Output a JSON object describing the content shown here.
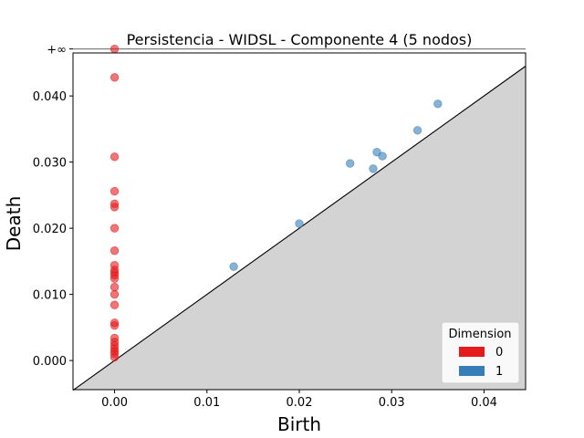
{
  "chart_data": {
    "type": "scatter",
    "title": "Persistencia - WIDSL - Componente 4 (5 nodos)",
    "xlabel": "Birth",
    "ylabel": "Death",
    "xlim": [
      -0.0045,
      0.0445
    ],
    "ylim": [
      -0.0044,
      0.0465
    ],
    "x_ticks": [
      0.0,
      0.01,
      0.02,
      0.03,
      0.04
    ],
    "x_tick_labels": [
      "0.00",
      "0.01",
      "0.02",
      "0.03",
      "0.04"
    ],
    "y_ticks": [
      0.0,
      0.01,
      0.02,
      0.03,
      0.04
    ],
    "y_tick_labels": [
      "0.000",
      "0.010",
      "0.020",
      "0.030",
      "0.040"
    ],
    "infinity_label": "+∞",
    "infinity_value": 0.0471,
    "grid": false,
    "legend": {
      "title": "Dimension",
      "position": "lower-right",
      "entries": [
        {
          "label": "0",
          "color": "#e41a1c"
        },
        {
          "label": "1",
          "color": "#377eb8"
        }
      ]
    },
    "series": [
      {
        "name": "0",
        "color": "#e41a1c",
        "points": [
          [
            0.0,
            "inf"
          ],
          [
            0.0,
            0.0428
          ],
          [
            0.0,
            0.0308
          ],
          [
            0.0,
            0.0256
          ],
          [
            0.0,
            0.0237
          ],
          [
            0.0,
            0.0232
          ],
          [
            0.0,
            0.02
          ],
          [
            0.0,
            0.0166
          ],
          [
            0.0,
            0.0144
          ],
          [
            0.0,
            0.0137
          ],
          [
            0.0,
            0.0133
          ],
          [
            0.0,
            0.0129
          ],
          [
            0.0,
            0.0124
          ],
          [
            0.0,
            0.0111
          ],
          [
            0.0,
            0.01
          ],
          [
            0.0,
            0.0084
          ],
          [
            0.0,
            0.0057
          ],
          [
            0.0,
            0.0053
          ],
          [
            0.0,
            0.0034
          ],
          [
            0.0,
            0.0028
          ],
          [
            0.0,
            0.0023
          ],
          [
            0.0,
            0.0018
          ],
          [
            0.0,
            0.0014
          ],
          [
            0.0,
            0.001
          ],
          [
            0.0,
            0.0005
          ]
        ]
      },
      {
        "name": "1",
        "color": "#377eb8",
        "points": [
          [
            0.0129,
            0.0142
          ],
          [
            0.02,
            0.0207
          ],
          [
            0.0255,
            0.0298
          ],
          [
            0.028,
            0.029
          ],
          [
            0.0284,
            0.0315
          ],
          [
            0.029,
            0.0309
          ],
          [
            0.0328,
            0.0348
          ],
          [
            0.035,
            0.0388
          ]
        ]
      }
    ]
  }
}
